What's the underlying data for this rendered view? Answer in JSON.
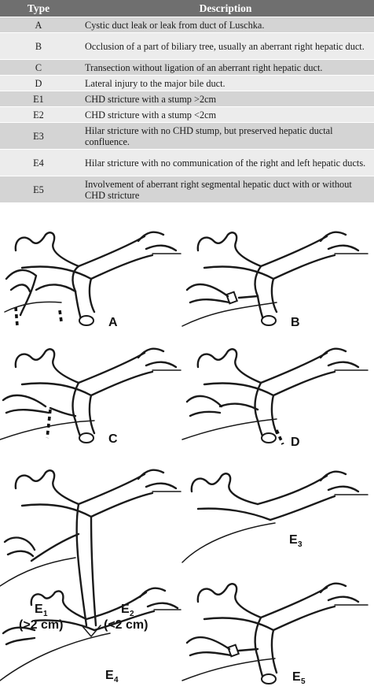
{
  "table": {
    "headers": {
      "type": "Type",
      "description": "Description"
    },
    "rows": [
      {
        "type": "A",
        "description": "Cystic duct leak or leak from duct of Luschka."
      },
      {
        "type": "B",
        "description": "Occlusion of a part of biliary tree, usually an aberrant right hepatic duct."
      },
      {
        "type": "C",
        "description": "Transection without ligation of an aberrant right hepatic duct."
      },
      {
        "type": "D",
        "description": "Lateral injury to the major bile duct."
      },
      {
        "type": "E1",
        "description": "CHD stricture with a stump >2cm"
      },
      {
        "type": "E2",
        "description": "CHD stricture with a stump <2cm"
      },
      {
        "type": "E3",
        "description": "Hilar stricture with no CHD stump, but preserved hepatic ductal confluence."
      },
      {
        "type": "E4",
        "description": "Hilar stricture with no communication of the right and left hepatic ducts."
      },
      {
        "type": "E5",
        "description": "Involvement of aberrant right segmental hepatic duct with or without CHD stricture"
      }
    ]
  },
  "figure": {
    "panels": {
      "A": {
        "label": "A"
      },
      "B": {
        "label": "B"
      },
      "C": {
        "label": "C"
      },
      "D": {
        "label": "D"
      },
      "E12": {
        "label_e1": "E",
        "sub_e1": "1",
        "note_e1": "(>2 cm)",
        "label_e2": "E",
        "sub_e2": "2",
        "note_e2": "(<2 cm)"
      },
      "E3": {
        "label": "E",
        "sub": "3"
      },
      "E4": {
        "label": "E",
        "sub": "4"
      },
      "E5": {
        "label": "E",
        "sub": "5"
      }
    }
  }
}
